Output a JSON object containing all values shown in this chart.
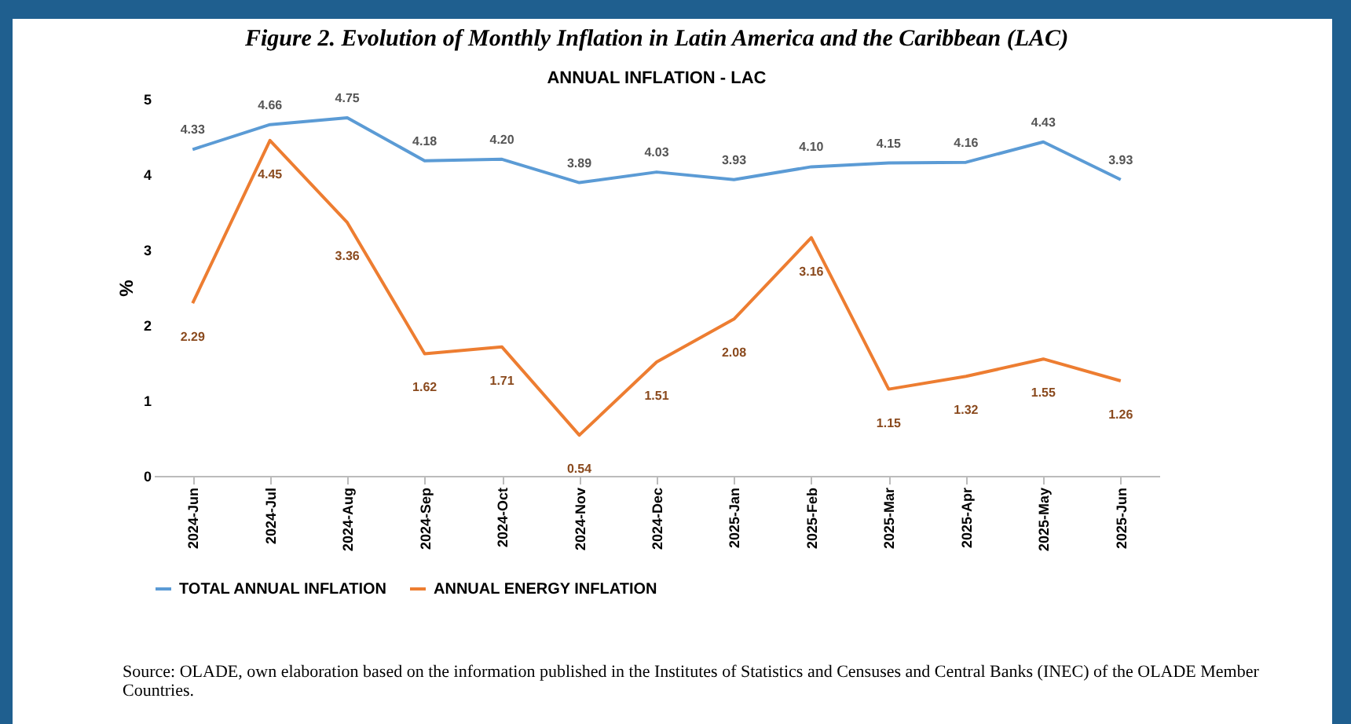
{
  "chart_data": {
    "type": "line",
    "title": "Figure 2. Evolution of Monthly Inflation in Latin America and the Caribbean (LAC)",
    "subtitle": "ANNUAL INFLATION  - LAC",
    "ylabel": "%",
    "categories": [
      "2024-Jun",
      "2024-Jul",
      "2024-Aug",
      "2024-Sep",
      "2024-Oct",
      "2024-Nov",
      "2024-Dec",
      "2025-Jan",
      "2025-Feb",
      "2025-Mar",
      "2025-Apr",
      "2025-May",
      "2025-Jun"
    ],
    "series": [
      {
        "name": "TOTAL ANNUAL INFLATION",
        "color": "#5b9bd5",
        "values": [
          4.33,
          4.66,
          4.75,
          4.18,
          4.2,
          3.89,
          4.03,
          3.93,
          4.1,
          4.15,
          4.16,
          4.43,
          3.93
        ],
        "value_labels": [
          "4.33",
          "4.66",
          "4.75",
          "4.18",
          "4.20",
          "3.89",
          "4.03",
          "3.93",
          "4.10",
          "4.15",
          "4.16",
          "4.43",
          "3.93"
        ]
      },
      {
        "name": "ANNUAL ENERGY INFLATION",
        "color": "#ed7d31",
        "values": [
          2.29,
          4.45,
          3.36,
          1.62,
          1.71,
          0.54,
          1.51,
          2.08,
          3.16,
          1.15,
          1.32,
          1.55,
          1.26
        ],
        "value_labels": [
          "2.29",
          "4.45",
          "3.36",
          "1.62",
          "1.71",
          "0.54",
          "1.51",
          "2.08",
          "3.16",
          "1.15",
          "1.32",
          "1.55",
          "1.26"
        ]
      }
    ],
    "ylim": [
      0,
      5
    ],
    "yticks": [
      0,
      1,
      2,
      3,
      4,
      5
    ],
    "grid": false,
    "legend": "bottom",
    "annotations": [
      "Source: OLADE, own elaboration based on the information published in the Institutes of Statistics and Censuses and Central Banks (INEC) of the OLADE Member Countries."
    ]
  }
}
